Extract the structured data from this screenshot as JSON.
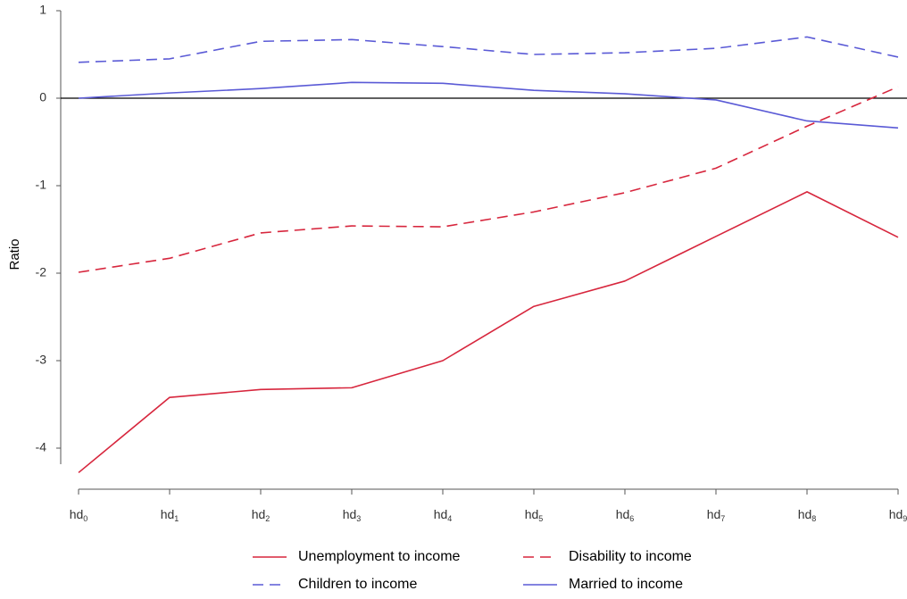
{
  "chart_data": {
    "type": "line",
    "title": "",
    "xlabel": "",
    "ylabel": "Ratio",
    "ylim": [
      -4.4,
      1.0
    ],
    "yticks": [
      1,
      0,
      -1,
      -2,
      -3,
      -4
    ],
    "ytick_labels": [
      "1",
      "0",
      "-1",
      "-2",
      "-3",
      "-4"
    ],
    "categories": [
      {
        "base": "hd",
        "sub": "0"
      },
      {
        "base": "hd",
        "sub": "1"
      },
      {
        "base": "hd",
        "sub": "2"
      },
      {
        "base": "hd",
        "sub": "3"
      },
      {
        "base": "hd",
        "sub": "4"
      },
      {
        "base": "hd",
        "sub": "5"
      },
      {
        "base": "hd",
        "sub": "6"
      },
      {
        "base": "hd",
        "sub": "7"
      },
      {
        "base": "hd",
        "sub": "8"
      },
      {
        "base": "hd",
        "sub": "9"
      }
    ],
    "reference_line": 0,
    "grid": false,
    "legend_position": "bottom",
    "series": [
      {
        "name": "Unemployment to income",
        "color": "#d7263d",
        "dash": "solid",
        "values": [
          -4.28,
          -3.42,
          -3.33,
          -3.31,
          -3.0,
          -2.38,
          -2.09,
          -1.58,
          -1.07,
          -1.59
        ]
      },
      {
        "name": "Disability to income",
        "color": "#d7263d",
        "dash": "dashed",
        "values": [
          -1.99,
          -1.83,
          -1.54,
          -1.46,
          -1.47,
          -1.3,
          -1.08,
          -0.8,
          -0.32,
          0.13
        ]
      },
      {
        "name": "Children to income",
        "color": "#5a5ad6",
        "dash": "dashed",
        "values": [
          0.41,
          0.45,
          0.65,
          0.67,
          0.59,
          0.5,
          0.52,
          0.57,
          0.7,
          0.47
        ]
      },
      {
        "name": "Married to income",
        "color": "#5a5ad6",
        "dash": "solid",
        "values": [
          0.0,
          0.06,
          0.11,
          0.18,
          0.17,
          0.09,
          0.05,
          -0.02,
          -0.26,
          -0.34
        ]
      }
    ]
  }
}
